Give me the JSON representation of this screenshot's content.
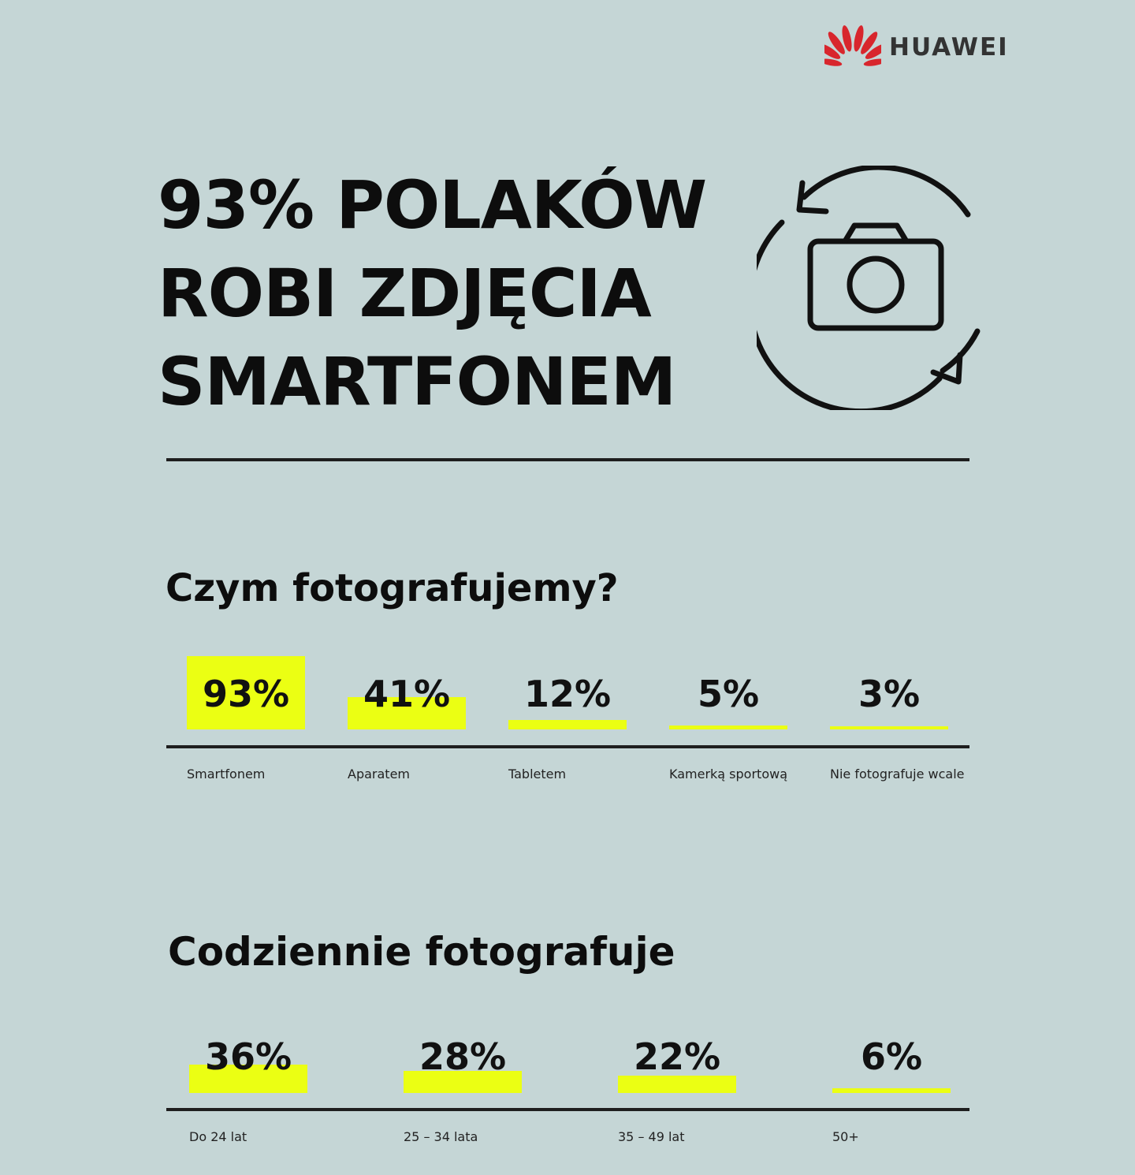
{
  "brand": {
    "name": "HUAWEI",
    "icon": "huawei-petal-logo",
    "color": "#d8262d"
  },
  "headline": {
    "lines": [
      "93% POLAKÓW",
      "ROBI ZDJĘCIA",
      "SMARTFONEM"
    ]
  },
  "hero_icon": "camera-rotate-icon",
  "colors": {
    "background": "#c5d6d6",
    "accent": "#ebff13",
    "text": "#111111"
  },
  "chart_data": [
    {
      "type": "bar",
      "title": "Czym fotografujemy?",
      "categories": [
        "Smartfonem",
        "Aparatem",
        "Tabletem",
        "Kamerką sportową",
        "Nie fotografuje wcale"
      ],
      "values": [
        93,
        41,
        12,
        5,
        3
      ],
      "value_labels": [
        "93%",
        "41%",
        "12%",
        "5%",
        "3%"
      ],
      "unit": "%",
      "ylim": [
        0,
        100
      ],
      "grid": false
    },
    {
      "type": "bar",
      "title": "Codziennie fotografuje",
      "categories": [
        "Do 24 lat",
        "25 – 34 lata",
        "35 – 49 lat",
        "50+"
      ],
      "values": [
        36,
        28,
        22,
        6
      ],
      "value_labels": [
        "36%",
        "28%",
        "22%",
        "6%"
      ],
      "unit": "%",
      "ylim": [
        0,
        100
      ],
      "grid": false
    }
  ]
}
